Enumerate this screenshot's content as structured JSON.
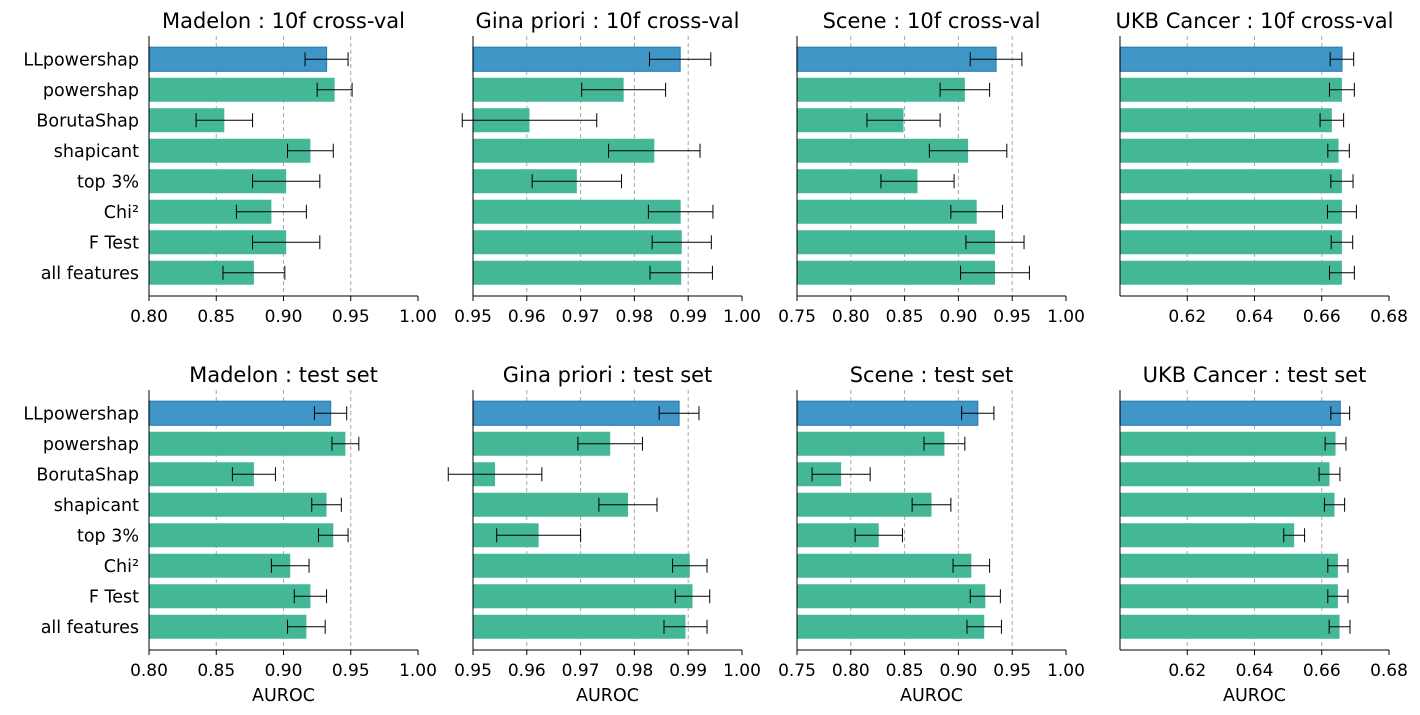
{
  "colors": {
    "highlight": "#4196c8",
    "highlight_edge": "#2e7fb0",
    "bar": "#44b797",
    "grid": "#a8a8a8",
    "errorbar": "#000000"
  },
  "chart_data": [
    {
      "type": "bar",
      "orientation": "horizontal",
      "title": "Madelon : 10f cross-val",
      "xlabel": "",
      "categories": [
        "LLpowershap",
        "powershap",
        "BorutaShap",
        "shapicant",
        "top 3%",
        "Chi²",
        "F Test",
        "all features"
      ],
      "values": [
        0.932,
        0.938,
        0.856,
        0.92,
        0.902,
        0.891,
        0.902,
        0.878
      ],
      "errors": [
        0.016,
        0.013,
        0.021,
        0.017,
        0.025,
        0.026,
        0.025,
        0.023
      ],
      "xlim": [
        0.8,
        1.0
      ],
      "xticks": [
        "0.80",
        "0.85",
        "0.90",
        "0.95",
        "1.00"
      ],
      "highlight": "LLpowershap",
      "grid": "x-dashed"
    },
    {
      "type": "bar",
      "orientation": "horizontal",
      "title": "Gina priori : 10f cross-val",
      "xlabel": "",
      "categories": [
        "LLpowershap",
        "powershap",
        "BorutaShap",
        "shapicant",
        "top 3%",
        "Chi²",
        "F Test",
        "all features"
      ],
      "values": [
        0.9885,
        0.978,
        0.9605,
        0.9837,
        0.9693,
        0.9886,
        0.9888,
        0.9887
      ],
      "errors": [
        0.0057,
        0.0078,
        0.0125,
        0.0085,
        0.0083,
        0.006,
        0.0055,
        0.0058
      ],
      "xlim": [
        0.95,
        1.0
      ],
      "xticks": [
        "0.95",
        "0.96",
        "0.97",
        "0.98",
        "0.99",
        "1.00"
      ],
      "highlight": "LLpowershap",
      "grid": "x-dashed"
    },
    {
      "type": "bar",
      "orientation": "horizontal",
      "title": "Scene : 10f cross-val",
      "xlabel": "",
      "categories": [
        "LLpowershap",
        "powershap",
        "BorutaShap",
        "shapicant",
        "top 3%",
        "Chi²",
        "F Test",
        "all features"
      ],
      "values": [
        0.935,
        0.906,
        0.849,
        0.909,
        0.862,
        0.917,
        0.934,
        0.934
      ],
      "errors": [
        0.024,
        0.023,
        0.034,
        0.036,
        0.034,
        0.024,
        0.027,
        0.032
      ],
      "xlim": [
        0.75,
        1.0
      ],
      "xticks": [
        "0.75",
        "0.80",
        "0.85",
        "0.90",
        "0.95",
        "1.00"
      ],
      "highlight": "LLpowershap",
      "grid": "x-dashed"
    },
    {
      "type": "bar",
      "orientation": "horizontal",
      "title": "UKB Cancer : 10f cross-val",
      "xlabel": "",
      "categories": [
        "LLpowershap",
        "powershap",
        "BorutaShap",
        "shapicant",
        "top 3%",
        "Chi²",
        "F Test",
        "all features"
      ],
      "values": [
        0.666,
        0.666,
        0.663,
        0.665,
        0.666,
        0.666,
        0.666,
        0.666
      ],
      "errors": [
        0.0035,
        0.0037,
        0.0035,
        0.0032,
        0.0033,
        0.0043,
        0.0032,
        0.0037
      ],
      "xlim": [
        0.6,
        0.68
      ],
      "xticks": [
        "0.62",
        "0.64",
        "0.66",
        "0.68"
      ],
      "xtick_values": [
        0.62,
        0.64,
        0.66,
        0.68
      ],
      "highlight": "LLpowershap",
      "grid": "x-dashed"
    },
    {
      "type": "bar",
      "orientation": "horizontal",
      "title": "Madelon : test set",
      "xlabel": "AUROC",
      "categories": [
        "LLpowershap",
        "powershap",
        "BorutaShap",
        "shapicant",
        "top 3%",
        "Chi²",
        "F Test",
        "all features"
      ],
      "values": [
        0.935,
        0.946,
        0.878,
        0.932,
        0.937,
        0.905,
        0.92,
        0.917
      ],
      "errors": [
        0.012,
        0.01,
        0.016,
        0.011,
        0.011,
        0.014,
        0.012,
        0.014
      ],
      "xlim": [
        0.8,
        1.0
      ],
      "xticks": [
        "0.80",
        "0.85",
        "0.90",
        "0.95",
        "1.00"
      ],
      "highlight": "LLpowershap",
      "grid": "x-dashed"
    },
    {
      "type": "bar",
      "orientation": "horizontal",
      "title": "Gina priori : test set",
      "xlabel": "AUROC",
      "categories": [
        "LLpowershap",
        "powershap",
        "BorutaShap",
        "shapicant",
        "top 3%",
        "Chi²",
        "F Test",
        "all features"
      ],
      "values": [
        0.9883,
        0.9755,
        0.9541,
        0.9788,
        0.9622,
        0.9903,
        0.9908,
        0.9895
      ],
      "errors": [
        0.0037,
        0.006,
        0.0087,
        0.0054,
        0.0078,
        0.0032,
        0.0032,
        0.004
      ],
      "xlim": [
        0.95,
        1.0
      ],
      "xticks": [
        "0.95",
        "0.96",
        "0.97",
        "0.98",
        "0.99",
        "1.00"
      ],
      "highlight": "LLpowershap",
      "grid": "x-dashed"
    },
    {
      "type": "bar",
      "orientation": "horizontal",
      "title": "Scene : test set",
      "xlabel": "AUROC",
      "categories": [
        "LLpowershap",
        "powershap",
        "BorutaShap",
        "shapicant",
        "top 3%",
        "Chi²",
        "F Test",
        "all features"
      ],
      "values": [
        0.918,
        0.887,
        0.791,
        0.875,
        0.826,
        0.912,
        0.925,
        0.924
      ],
      "errors": [
        0.015,
        0.019,
        0.027,
        0.018,
        0.022,
        0.017,
        0.014,
        0.016
      ],
      "xlim": [
        0.75,
        1.0
      ],
      "xticks": [
        "0.75",
        "0.80",
        "0.85",
        "0.90",
        "0.95",
        "1.00"
      ],
      "highlight": "LLpowershap",
      "grid": "x-dashed"
    },
    {
      "type": "bar",
      "orientation": "horizontal",
      "title": "UKB Cancer : test set",
      "xlabel": "AUROC",
      "categories": [
        "LLpowershap",
        "powershap",
        "BorutaShap",
        "shapicant",
        "top 3%",
        "Chi²",
        "F Test",
        "all features"
      ],
      "values": [
        0.6655,
        0.6641,
        0.6623,
        0.6638,
        0.6518,
        0.6648,
        0.6648,
        0.6653
      ],
      "errors": [
        0.0028,
        0.0031,
        0.0031,
        0.003,
        0.0031,
        0.003,
        0.003,
        0.0031
      ],
      "xlim": [
        0.6,
        0.68
      ],
      "xticks": [
        "0.62",
        "0.64",
        "0.66",
        "0.68"
      ],
      "xtick_values": [
        0.62,
        0.64,
        0.66,
        0.68
      ],
      "highlight": "LLpowershap",
      "grid": "x-dashed"
    }
  ]
}
